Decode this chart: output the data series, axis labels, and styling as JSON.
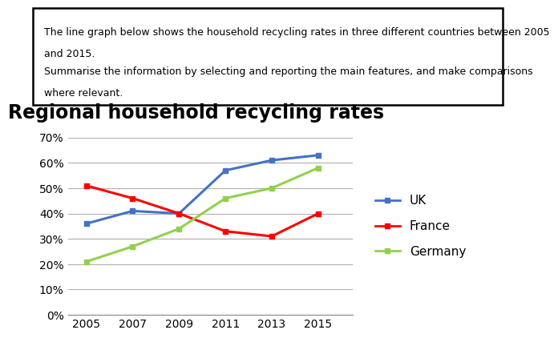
{
  "title": "Regional household recycling rates",
  "text_box_line1": "The line graph below shows the household recycling rates in three different countries between 2005",
  "text_box_line2": "and 2015.",
  "text_box_line3": "Summarise the information by selecting and reporting the main features, and make comparisons",
  "text_box_line4": "where relevant.",
  "years": [
    2005,
    2007,
    2009,
    2011,
    2013,
    2015
  ],
  "UK": [
    36,
    41,
    40,
    57,
    61,
    63
  ],
  "France": [
    51,
    46,
    40,
    33,
    31,
    40
  ],
  "Germany": [
    21,
    27,
    34,
    46,
    50,
    58
  ],
  "UK_color": "#4472C4",
  "France_color": "#FF0000",
  "Germany_color": "#92D050",
  "ylim": [
    0,
    70
  ],
  "yticks": [
    0,
    10,
    20,
    30,
    40,
    50,
    60,
    70
  ],
  "xticks": [
    2005,
    2007,
    2009,
    2011,
    2013,
    2015
  ],
  "background_color": "#ffffff",
  "grid_color": "#b0b0b0",
  "title_fontsize": 17,
  "tick_fontsize": 10,
  "legend_fontsize": 11,
  "textbox_fontsize": 9
}
